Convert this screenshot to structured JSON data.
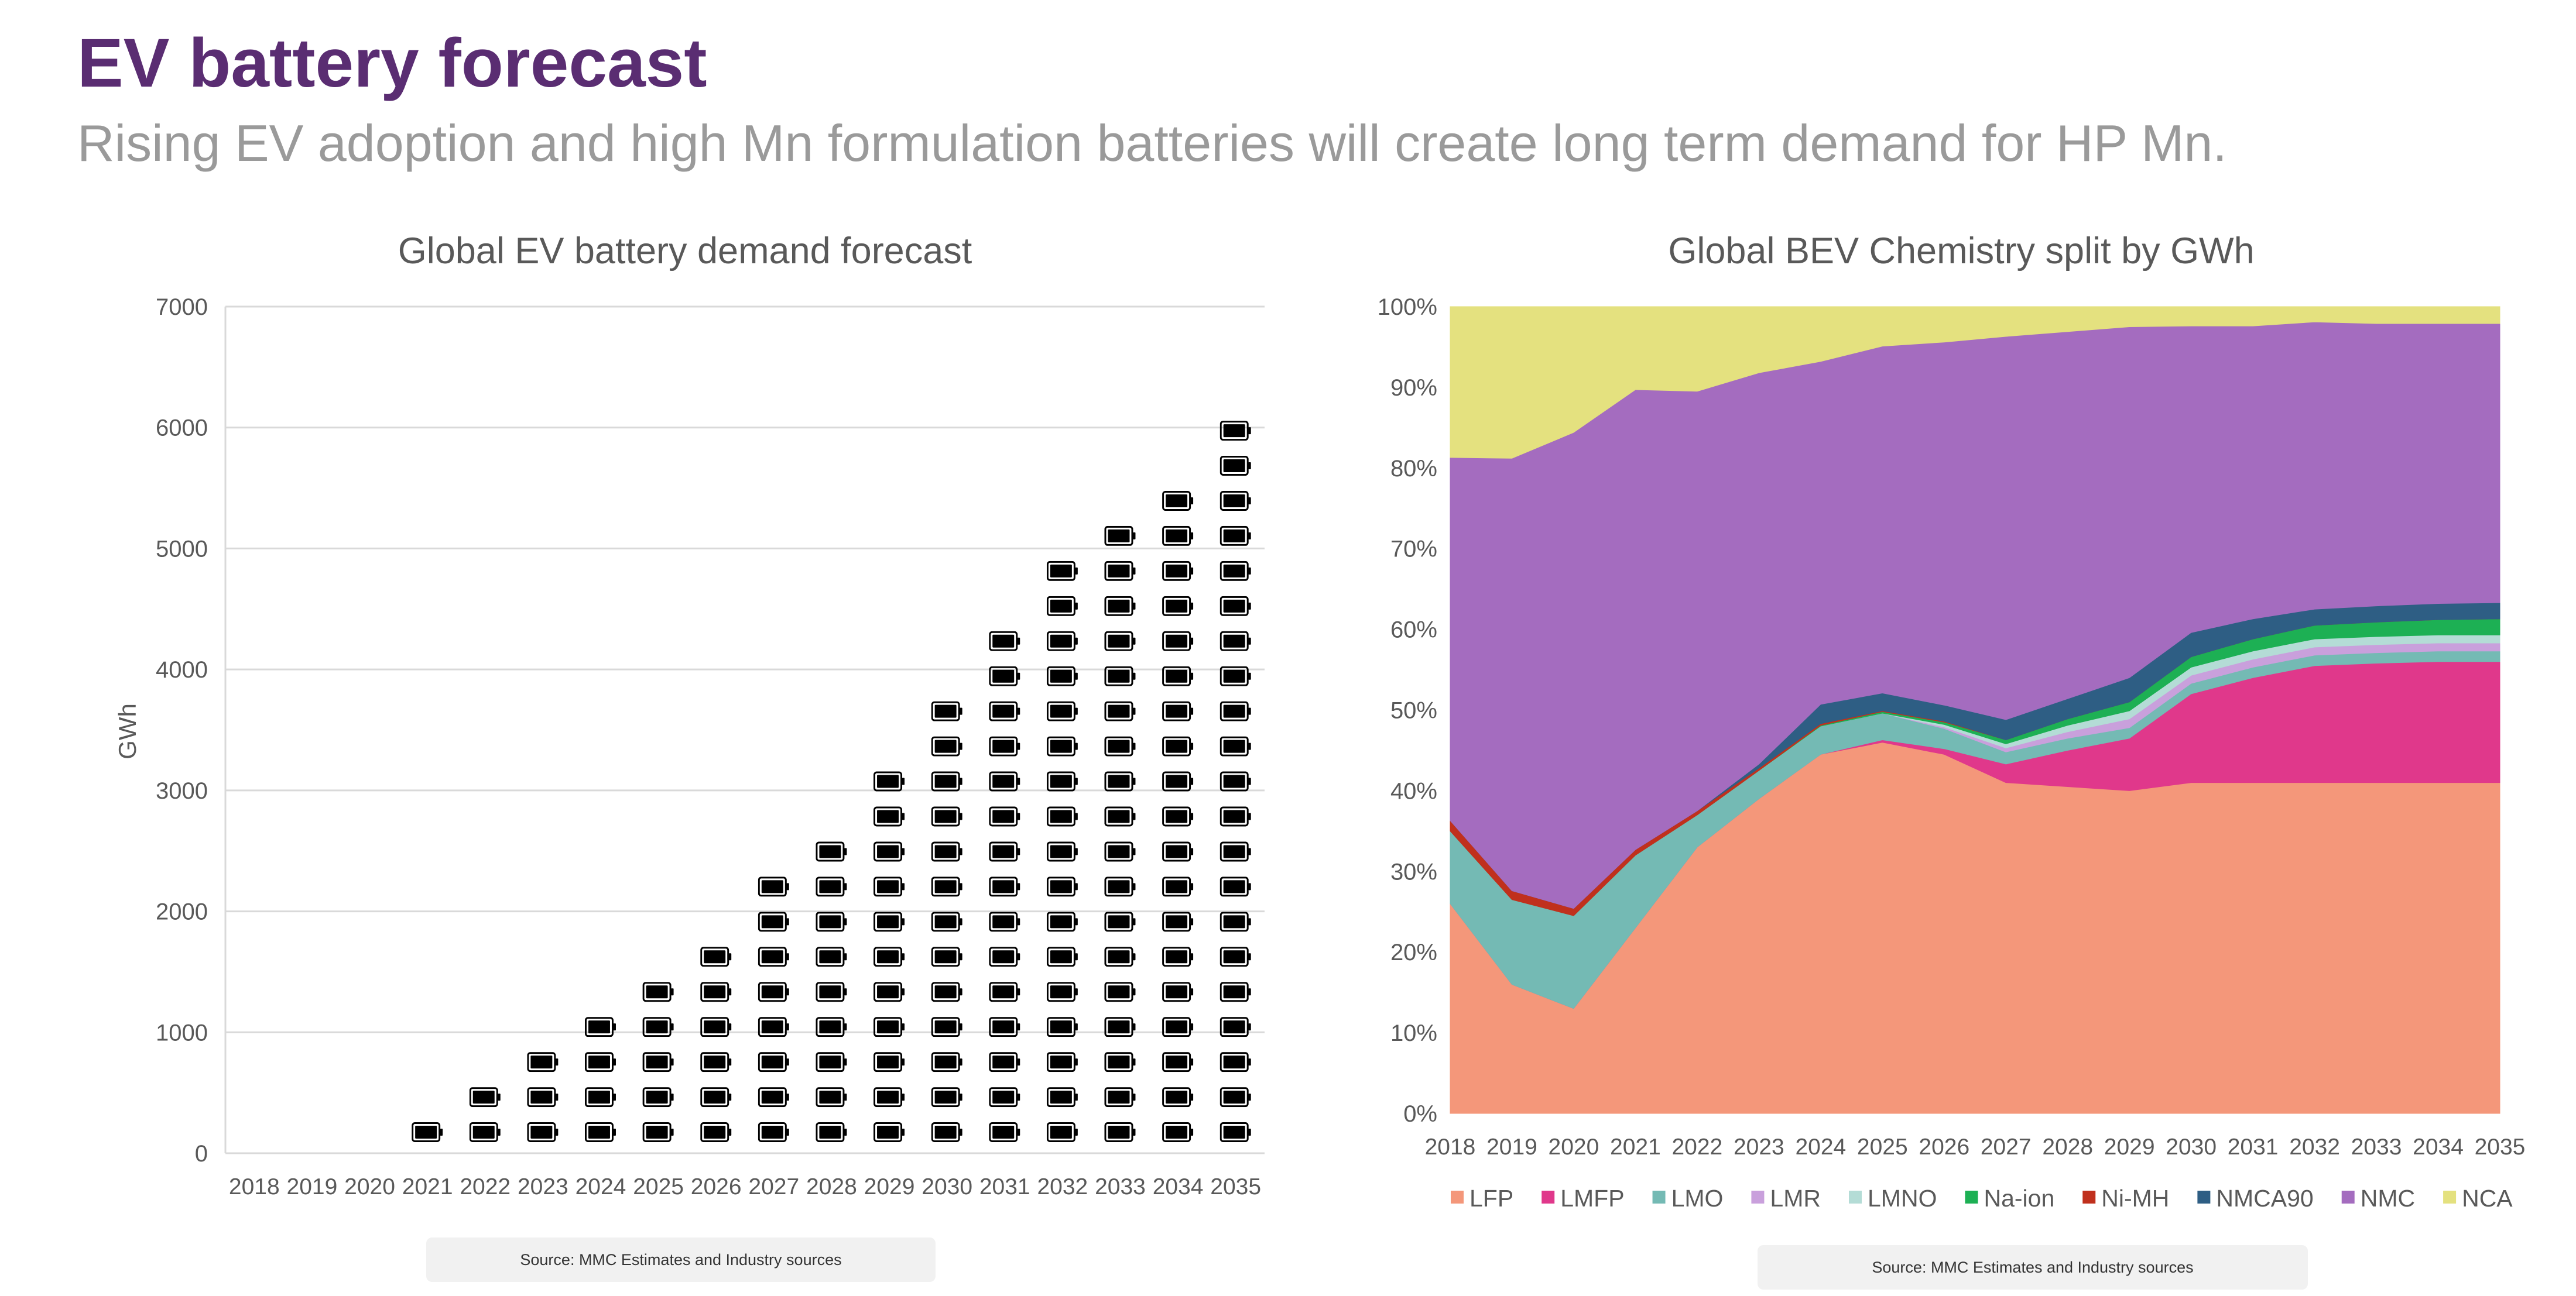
{
  "header": {
    "title": "EV battery forecast",
    "subtitle": "Rising EV adoption and high Mn formulation batteries will create long term demand for HP Mn."
  },
  "colors": {
    "title": "#5a2d72",
    "subtitle": "#9a9a9a",
    "grid": "#d9d9d9",
    "axis_text": "#595959",
    "battery_icon": "#000000"
  },
  "icons": {
    "battery": "battery-icon"
  },
  "chart_data": [
    {
      "type": "bar",
      "title": "Global EV battery demand forecast",
      "ylabel": "GWh",
      "xlabel": "",
      "ylim": [
        0,
        7000
      ],
      "yticks": [
        "0",
        "1000",
        "2000",
        "3000",
        "4000",
        "5000",
        "6000",
        "7000"
      ],
      "categories": [
        "2018",
        "2019",
        "2020",
        "2021",
        "2022",
        "2023",
        "2024",
        "2025",
        "2026",
        "2027",
        "2028",
        "2029",
        "2030",
        "2031",
        "2032",
        "2033",
        "2034",
        "2035"
      ],
      "values": [
        115,
        140,
        165,
        420,
        680,
        960,
        1220,
        1580,
        1860,
        2420,
        2700,
        3270,
        3830,
        4390,
        4940,
        5400,
        5780,
        6360
      ],
      "grid": true,
      "legend": "none",
      "source": "Source: MMC Estimates and Industry sources"
    },
    {
      "type": "area",
      "stacked": true,
      "title": "Global BEV Chemistry split by GWh",
      "ylim": [
        0,
        100
      ],
      "yticks": [
        "0%",
        "10%",
        "20%",
        "30%",
        "40%",
        "50%",
        "60%",
        "70%",
        "80%",
        "90%",
        "100%"
      ],
      "x": [
        "2018",
        "2019",
        "2020",
        "2021",
        "2022",
        "2023",
        "2024",
        "2025",
        "2026",
        "2027",
        "2028",
        "2029",
        "2030",
        "2031",
        "2032",
        "2033",
        "2034",
        "2035"
      ],
      "series": [
        {
          "name": "LFP",
          "color": "#f4977a",
          "values": [
            26,
            16,
            13,
            23,
            33,
            39,
            44.5,
            46,
            44.5,
            41,
            40.5,
            40,
            41,
            41,
            41,
            41,
            41,
            41
          ]
        },
        {
          "name": "LMFP",
          "color": "#e0388b",
          "values": [
            0,
            0,
            0,
            0,
            0,
            0,
            0,
            0.3,
            0.7,
            2.3,
            4.5,
            6.5,
            11,
            13,
            14.5,
            14.8,
            15,
            15
          ]
        },
        {
          "name": "LMO",
          "color": "#74bab4",
          "values": [
            9,
            10.5,
            11.5,
            9,
            4,
            3.5,
            3.5,
            3.3,
            2.5,
            1.5,
            1.5,
            1.3,
            1.3,
            1.3,
            1.3,
            1.3,
            1.3,
            1.3
          ]
        },
        {
          "name": "LMR",
          "color": "#c9a0dc",
          "values": [
            0,
            0,
            0,
            0,
            0,
            0,
            0,
            0,
            0.2,
            0.5,
            0.8,
            1.1,
            1,
            1,
            1,
            1,
            1,
            1
          ]
        },
        {
          "name": "LMNO",
          "color": "#b4dcd6",
          "values": [
            0,
            0,
            0,
            0,
            0,
            0,
            0,
            0,
            0.3,
            0.5,
            0.8,
            1,
            1,
            1,
            1,
            1,
            1,
            1
          ]
        },
        {
          "name": "Na-ion",
          "color": "#1db054",
          "values": [
            0,
            0,
            0,
            0,
            0,
            0,
            0.1,
            0.2,
            0.3,
            0.5,
            0.8,
            1.1,
            1.3,
            1.5,
            1.7,
            1.8,
            1.9,
            2
          ]
        },
        {
          "name": "Ni-MH",
          "color": "#c0301d",
          "values": [
            1.3,
            1.1,
            0.9,
            0.7,
            0.5,
            0.3,
            0.2,
            0.1,
            0.1,
            0,
            0,
            0,
            0,
            0,
            0,
            0,
            0,
            0
          ]
        },
        {
          "name": "NMCA90",
          "color": "#2e5e84",
          "values": [
            0,
            0,
            0,
            0,
            0,
            0.5,
            2.4,
            2.2,
            2,
            2.5,
            2.5,
            3,
            3,
            2.5,
            2,
            2,
            2,
            2
          ]
        },
        {
          "name": "NMC",
          "color": "#a46cbf",
          "values": [
            45,
            53.6,
            59,
            57,
            52,
            48.5,
            42.5,
            43,
            45,
            47.5,
            45.5,
            43.5,
            38,
            36.3,
            35.6,
            35,
            34.7,
            34.6
          ]
        },
        {
          "name": "NCA",
          "color": "#e4e17f",
          "values": [
            18.7,
            18.8,
            15.6,
            10.3,
            10.5,
            8.2,
            6.8,
            4.9,
            4.4,
            3.2,
            3.1,
            2.5,
            2.4,
            2.4,
            1.9,
            2.1,
            2.1,
            2.1
          ]
        }
      ],
      "grid": false,
      "legend": "bottom",
      "source": "Source: MMC Estimates and Industry sources"
    }
  ]
}
